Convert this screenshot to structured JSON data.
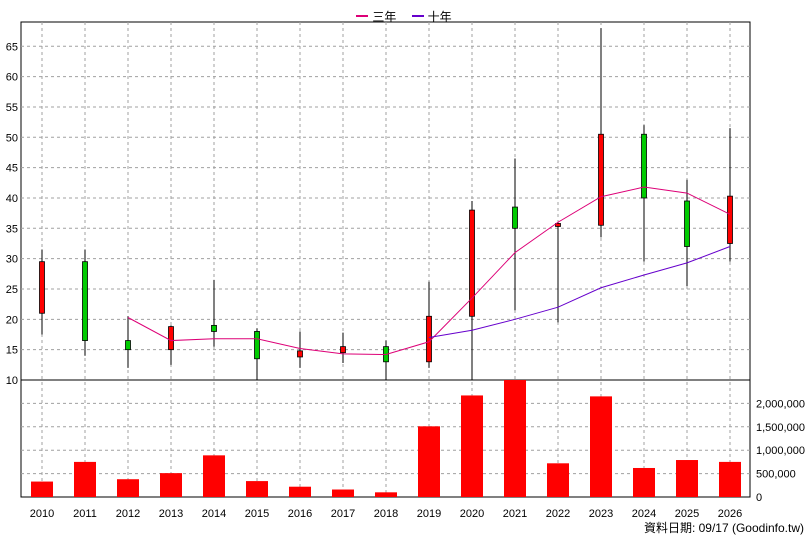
{
  "legend": {
    "items": [
      {
        "label": "三年",
        "color": "#dd0077"
      },
      {
        "label": "十年",
        "color": "#6600cc"
      }
    ]
  },
  "credit": "資料日期: 09/17 (Goodinfo.tw)",
  "colors": {
    "grid": "#a0a0a0",
    "up_candle": "#ff0000",
    "down_candle": "#00cc00",
    "volume_bar": "#ff0000",
    "wick": "#000000"
  },
  "chart_data": [
    {
      "type": "candlestick",
      "categories": [
        "2010",
        "2011",
        "2012",
        "2013",
        "2014",
        "2015",
        "2016",
        "2017",
        "2018",
        "2019",
        "2020",
        "2021",
        "2022",
        "2023",
        "2024",
        "2025",
        "2026"
      ],
      "ylim": [
        10,
        69
      ],
      "yticks": [
        10,
        15,
        20,
        25,
        30,
        35,
        40,
        45,
        50,
        55,
        60,
        65
      ],
      "grid": true,
      "candles": [
        {
          "x": "2010",
          "open": 21,
          "close": 29.5,
          "high": 31.5,
          "low": 17.5
        },
        {
          "x": "2011",
          "open": 29.5,
          "close": 16.5,
          "high": 31.5,
          "low": 14
        },
        {
          "x": "2012",
          "open": 16.5,
          "close": 15,
          "high": 20.5,
          "low": 12
        },
        {
          "x": "2013",
          "open": 15,
          "close": 18.8,
          "high": 19,
          "low": 12.5
        },
        {
          "x": "2014",
          "open": 19,
          "close": 18,
          "high": 26.5,
          "low": 15.5
        },
        {
          "x": "2015",
          "open": 18,
          "close": 13.5,
          "high": 18.5,
          "low": 9
        },
        {
          "x": "2016",
          "open": 13.8,
          "close": 14.8,
          "high": 18,
          "low": 12
        },
        {
          "x": "2017",
          "open": 14.5,
          "close": 15.5,
          "high": 17.8,
          "low": 12.8
        },
        {
          "x": "2018",
          "open": 15.5,
          "close": 13,
          "high": 16.5,
          "low": 10
        },
        {
          "x": "2019",
          "open": 13,
          "close": 20.5,
          "high": 26.2,
          "low": 12
        },
        {
          "x": "2020",
          "open": 20.5,
          "close": 38,
          "high": 39.5,
          "low": 10
        },
        {
          "x": "2021",
          "open": 38.5,
          "close": 35,
          "high": 46.5,
          "low": 21.5
        },
        {
          "x": "2022",
          "open": 35.3,
          "close": 35.8,
          "high": 36,
          "low": 19.5
        },
        {
          "x": "2023",
          "open": 35.5,
          "close": 50.5,
          "high": 68,
          "low": 33.5
        },
        {
          "x": "2024",
          "open": 50.5,
          "close": 40,
          "high": 52,
          "low": 29.5
        },
        {
          "x": "2025",
          "open": 39.5,
          "close": 32,
          "high": 43,
          "low": 25.5
        },
        {
          "x": "2026",
          "open": 32.5,
          "close": 40.3,
          "high": 51.5,
          "low": 29.5
        }
      ],
      "series": [
        {
          "name": "三年",
          "values": [
            null,
            null,
            20.3,
            16.5,
            16.8,
            16.8,
            15.2,
            14.3,
            14.2,
            16.3,
            23.5,
            31,
            36,
            40.2,
            41.8,
            40.8,
            37.3
          ]
        },
        {
          "name": "十年",
          "values": [
            null,
            null,
            null,
            null,
            null,
            null,
            null,
            null,
            null,
            17,
            18.2,
            20,
            22,
            25.2,
            27.3,
            29.3,
            32
          ]
        }
      ]
    },
    {
      "type": "bar",
      "categories": [
        "2010",
        "2011",
        "2012",
        "2013",
        "2014",
        "2015",
        "2016",
        "2017",
        "2018",
        "2019",
        "2020",
        "2021",
        "2022",
        "2023",
        "2024",
        "2025",
        "2026"
      ],
      "values": [
        330000,
        750000,
        380000,
        510000,
        890000,
        340000,
        220000,
        160000,
        100000,
        1510000,
        2170000,
        2500000,
        720000,
        2150000,
        620000,
        790000,
        750000
      ],
      "ylim": [
        0,
        2500000
      ],
      "yticks": [
        0,
        500000,
        1000000,
        1500000,
        2000000
      ],
      "ytick_labels": [
        "0",
        "500,000",
        "1,000,000",
        "1,500,000",
        "2,000,000"
      ],
      "grid": true
    }
  ]
}
